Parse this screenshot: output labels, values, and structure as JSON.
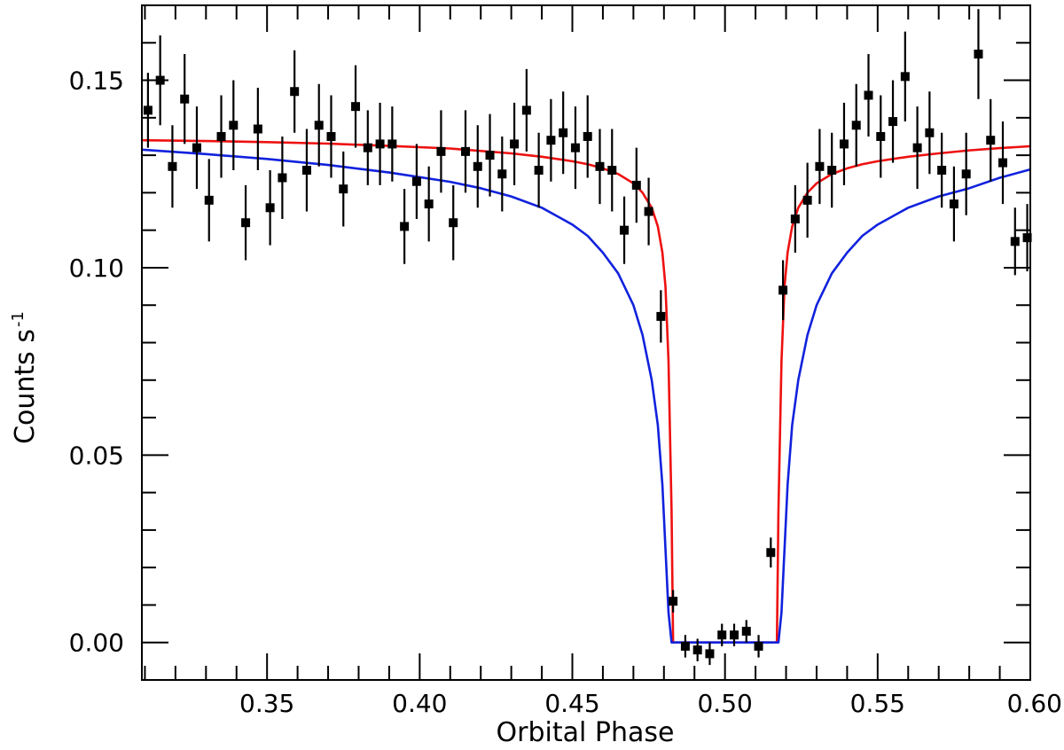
{
  "chart_data": {
    "type": "scatter",
    "title": "",
    "xlabel": "Orbital Phase",
    "ylabel": "Counts s",
    "ylabel_superscript": "-1",
    "xlim": [
      0.309,
      0.6
    ],
    "ylim": [
      -0.01,
      0.17
    ],
    "grid": false,
    "x_major_ticks": [
      0.35,
      0.4,
      0.45,
      0.5,
      0.55,
      0.6
    ],
    "x_minor_ticks": [
      0.31,
      0.32,
      0.33,
      0.34,
      0.36,
      0.37,
      0.38,
      0.39,
      0.41,
      0.42,
      0.43,
      0.44,
      0.46,
      0.47,
      0.48,
      0.49,
      0.51,
      0.52,
      0.53,
      0.54,
      0.56,
      0.57,
      0.58,
      0.59
    ],
    "x_tick_labels": [
      "0.35",
      "0.40",
      "0.45",
      "0.50",
      "0.55",
      "0.60"
    ],
    "y_major_ticks": [
      0.0,
      0.05,
      0.1,
      0.15
    ],
    "y_minor_ticks": [
      0.01,
      0.02,
      0.03,
      0.04,
      0.06,
      0.07,
      0.08,
      0.09,
      0.11,
      0.12,
      0.13,
      0.14,
      0.16
    ],
    "y_tick_labels": [
      "0.00",
      "0.05",
      "0.10",
      "0.15"
    ],
    "series": [
      {
        "name": "data",
        "kind": "points-with-errorbars",
        "color": "#000000",
        "points": [
          [
            0.311,
            0.142,
            0.01
          ],
          [
            0.315,
            0.15,
            0.012
          ],
          [
            0.319,
            0.127,
            0.011
          ],
          [
            0.323,
            0.145,
            0.012
          ],
          [
            0.327,
            0.132,
            0.011
          ],
          [
            0.331,
            0.118,
            0.011
          ],
          [
            0.335,
            0.135,
            0.011
          ],
          [
            0.339,
            0.138,
            0.012
          ],
          [
            0.343,
            0.112,
            0.01
          ],
          [
            0.347,
            0.137,
            0.011
          ],
          [
            0.351,
            0.116,
            0.01
          ],
          [
            0.355,
            0.124,
            0.011
          ],
          [
            0.359,
            0.147,
            0.011
          ],
          [
            0.363,
            0.126,
            0.011
          ],
          [
            0.367,
            0.138,
            0.011
          ],
          [
            0.371,
            0.135,
            0.011
          ],
          [
            0.375,
            0.121,
            0.01
          ],
          [
            0.379,
            0.143,
            0.011
          ],
          [
            0.383,
            0.132,
            0.01
          ],
          [
            0.387,
            0.133,
            0.011
          ],
          [
            0.391,
            0.133,
            0.01
          ],
          [
            0.395,
            0.111,
            0.01
          ],
          [
            0.399,
            0.123,
            0.01
          ],
          [
            0.403,
            0.117,
            0.01
          ],
          [
            0.407,
            0.131,
            0.011
          ],
          [
            0.411,
            0.112,
            0.01
          ],
          [
            0.415,
            0.131,
            0.011
          ],
          [
            0.419,
            0.127,
            0.011
          ],
          [
            0.423,
            0.13,
            0.011
          ],
          [
            0.427,
            0.125,
            0.01
          ],
          [
            0.431,
            0.133,
            0.011
          ],
          [
            0.435,
            0.142,
            0.011
          ],
          [
            0.439,
            0.126,
            0.01
          ],
          [
            0.443,
            0.134,
            0.011
          ],
          [
            0.447,
            0.136,
            0.011
          ],
          [
            0.451,
            0.132,
            0.011
          ],
          [
            0.455,
            0.135,
            0.011
          ],
          [
            0.459,
            0.127,
            0.01
          ],
          [
            0.463,
            0.126,
            0.011
          ],
          [
            0.467,
            0.11,
            0.009
          ],
          [
            0.471,
            0.122,
            0.01
          ],
          [
            0.475,
            0.115,
            0.009
          ],
          [
            0.479,
            0.087,
            0.007
          ],
          [
            0.483,
            0.011,
            0.003
          ],
          [
            0.487,
            -0.001,
            0.003
          ],
          [
            0.491,
            -0.002,
            0.003
          ],
          [
            0.495,
            -0.003,
            0.003
          ],
          [
            0.499,
            0.002,
            0.003
          ],
          [
            0.503,
            0.002,
            0.003
          ],
          [
            0.507,
            0.003,
            0.003
          ],
          [
            0.511,
            -0.001,
            0.003
          ],
          [
            0.515,
            0.024,
            0.004
          ],
          [
            0.519,
            0.094,
            0.008
          ],
          [
            0.523,
            0.113,
            0.009
          ],
          [
            0.527,
            0.118,
            0.01
          ],
          [
            0.531,
            0.127,
            0.01
          ],
          [
            0.535,
            0.126,
            0.01
          ],
          [
            0.539,
            0.133,
            0.011
          ],
          [
            0.543,
            0.138,
            0.011
          ],
          [
            0.547,
            0.146,
            0.011
          ],
          [
            0.551,
            0.135,
            0.011
          ],
          [
            0.555,
            0.139,
            0.011
          ],
          [
            0.559,
            0.151,
            0.012
          ],
          [
            0.563,
            0.132,
            0.011
          ],
          [
            0.567,
            0.136,
            0.011
          ],
          [
            0.571,
            0.126,
            0.01
          ],
          [
            0.575,
            0.117,
            0.01
          ],
          [
            0.579,
            0.125,
            0.011
          ],
          [
            0.583,
            0.157,
            0.012
          ],
          [
            0.587,
            0.134,
            0.011
          ],
          [
            0.591,
            0.128,
            0.011
          ],
          [
            0.595,
            0.107,
            0.009
          ],
          [
            0.599,
            0.108,
            0.009
          ]
        ]
      },
      {
        "name": "red-model",
        "kind": "line",
        "color": "#ee1111",
        "x": [
          0.309,
          0.33,
          0.35,
          0.37,
          0.39,
          0.41,
          0.43,
          0.44,
          0.45,
          0.455,
          0.46,
          0.465,
          0.47,
          0.473,
          0.476,
          0.478,
          0.4795,
          0.4805,
          0.4815,
          0.4825,
          0.483,
          0.517,
          0.5175,
          0.5185,
          0.5195,
          0.5205,
          0.522,
          0.524,
          0.527,
          0.53,
          0.535,
          0.54,
          0.545,
          0.55,
          0.56,
          0.57,
          0.58,
          0.59,
          0.6
        ],
        "y": [
          0.134,
          0.1338,
          0.1335,
          0.1331,
          0.1325,
          0.1318,
          0.1305,
          0.1296,
          0.1284,
          0.1276,
          0.1265,
          0.125,
          0.1225,
          0.12,
          0.116,
          0.111,
          0.104,
          0.095,
          0.075,
          0.035,
          0.0,
          0.0,
          0.035,
          0.075,
          0.095,
          0.104,
          0.111,
          0.116,
          0.12,
          0.1225,
          0.125,
          0.1265,
          0.1276,
          0.1284,
          0.1296,
          0.1305,
          0.1313,
          0.1319,
          0.1324
        ]
      },
      {
        "name": "blue-model",
        "kind": "line",
        "color": "#1122dd",
        "x": [
          0.309,
          0.33,
          0.35,
          0.37,
          0.39,
          0.41,
          0.42,
          0.43,
          0.44,
          0.45,
          0.455,
          0.46,
          0.465,
          0.47,
          0.473,
          0.476,
          0.478,
          0.4795,
          0.4805,
          0.4815,
          0.4825,
          0.5175,
          0.5185,
          0.5195,
          0.5205,
          0.522,
          0.524,
          0.527,
          0.53,
          0.535,
          0.54,
          0.545,
          0.55,
          0.56,
          0.57,
          0.58,
          0.59,
          0.6
        ],
        "y": [
          0.1315,
          0.1303,
          0.129,
          0.1274,
          0.1254,
          0.1229,
          0.1212,
          0.119,
          0.116,
          0.1115,
          0.1085,
          0.104,
          0.0985,
          0.09,
          0.082,
          0.07,
          0.058,
          0.042,
          0.025,
          0.008,
          0.0,
          0.0,
          0.008,
          0.025,
          0.042,
          0.058,
          0.07,
          0.082,
          0.09,
          0.0985,
          0.104,
          0.1085,
          0.1115,
          0.116,
          0.119,
          0.1212,
          0.124,
          0.1262
        ]
      }
    ]
  }
}
